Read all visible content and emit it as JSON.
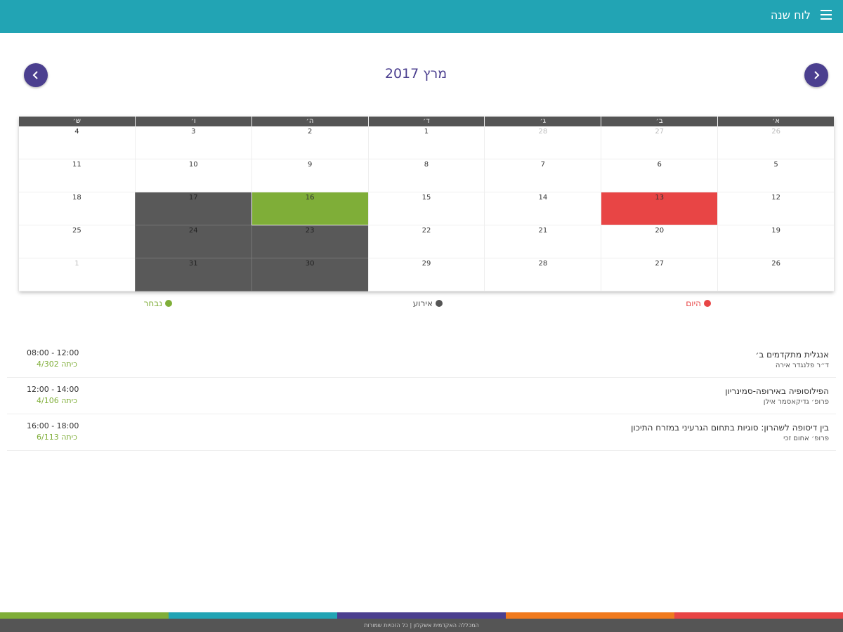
{
  "header": {
    "title": "לוח שנה",
    "menu_icon": "hamburger-icon"
  },
  "calendar": {
    "month_title": "מרץ 2017",
    "prev_icon": "chevron-left-icon",
    "next_icon": "chevron-right-icon",
    "weekdays": [
      "א׳",
      "ב׳",
      "ג׳",
      "ד׳",
      "ה׳",
      "ו׳",
      "ש׳"
    ],
    "weeks": [
      [
        {
          "d": "26",
          "s": "muted"
        },
        {
          "d": "27",
          "s": "muted"
        },
        {
          "d": "28",
          "s": "muted"
        },
        {
          "d": "1",
          "s": ""
        },
        {
          "d": "2",
          "s": ""
        },
        {
          "d": "3",
          "s": ""
        },
        {
          "d": "4",
          "s": ""
        }
      ],
      [
        {
          "d": "5",
          "s": ""
        },
        {
          "d": "6",
          "s": ""
        },
        {
          "d": "7",
          "s": ""
        },
        {
          "d": "8",
          "s": ""
        },
        {
          "d": "9",
          "s": ""
        },
        {
          "d": "10",
          "s": ""
        },
        {
          "d": "11",
          "s": ""
        }
      ],
      [
        {
          "d": "12",
          "s": ""
        },
        {
          "d": "13",
          "s": "today"
        },
        {
          "d": "14",
          "s": ""
        },
        {
          "d": "15",
          "s": ""
        },
        {
          "d": "16",
          "s": "selected"
        },
        {
          "d": "17",
          "s": "event"
        },
        {
          "d": "18",
          "s": ""
        }
      ],
      [
        {
          "d": "19",
          "s": ""
        },
        {
          "d": "20",
          "s": ""
        },
        {
          "d": "21",
          "s": ""
        },
        {
          "d": "22",
          "s": ""
        },
        {
          "d": "23",
          "s": "event"
        },
        {
          "d": "24",
          "s": "event"
        },
        {
          "d": "25",
          "s": ""
        }
      ],
      [
        {
          "d": "26",
          "s": ""
        },
        {
          "d": "27",
          "s": ""
        },
        {
          "d": "28",
          "s": ""
        },
        {
          "d": "29",
          "s": ""
        },
        {
          "d": "30",
          "s": "event"
        },
        {
          "d": "31",
          "s": "event"
        },
        {
          "d": "1",
          "s": "muted"
        }
      ]
    ],
    "colors": {
      "event": "#595959",
      "today": "#e84545",
      "selected": "#7fae38"
    }
  },
  "legend": {
    "today": "היום",
    "event": "אירוע",
    "selected": "נבחר"
  },
  "courses": [
    {
      "name": "אנגלית מתקדמים ב׳",
      "lecturer": "ד״ר פלנגדר אירה",
      "time": "08:00 - 12:00",
      "room": "כיתה 4/302"
    },
    {
      "name": "הפילוסופיה באירופה-סמינריון",
      "lecturer": "פרופ׳ גדיקאסמר אילן",
      "time": "12:00 - 14:00",
      "room": "כיתה 4/106"
    },
    {
      "name": "בין דיסופה לשהרון: סוגיות בתחום הגרעיני במזרח התיכון",
      "lecturer": "פרופ׳ אחום זכי",
      "time": "16:00 - 18:00",
      "room": "כיתה 6/113"
    }
  ],
  "footer": {
    "text": "המכללה האקדמית אשקלון | כל הזכויות שמורות",
    "stripe_colors": [
      "#7fae38",
      "#22a4b4",
      "#4b3f8f",
      "#f07a1e",
      "#e84545"
    ]
  }
}
